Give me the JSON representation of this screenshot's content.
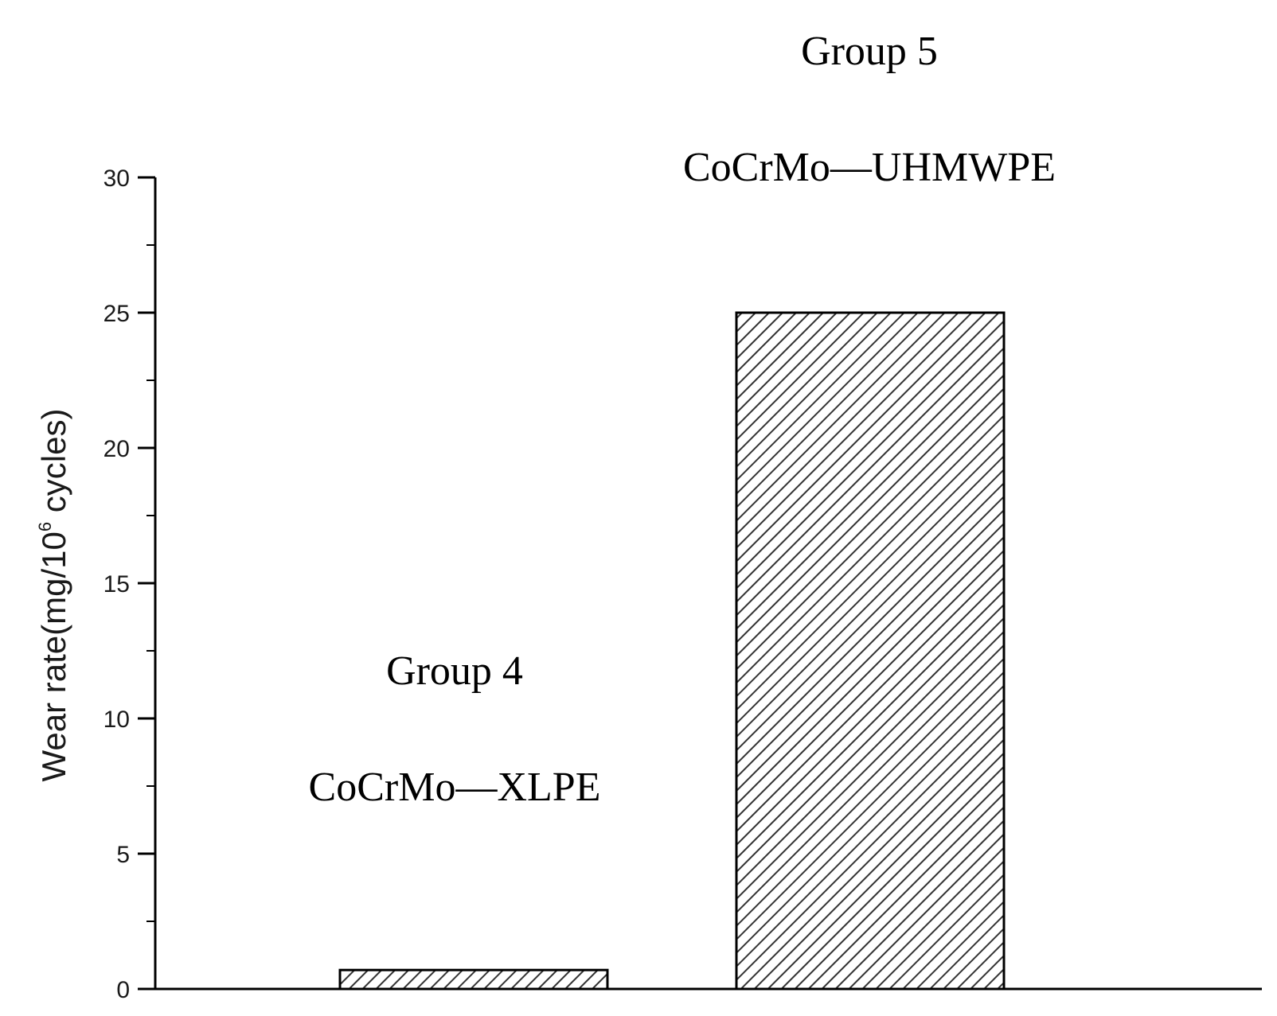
{
  "chart_data": {
    "type": "bar",
    "categories": [
      "Group 4",
      "Group 5"
    ],
    "values": [
      0.7,
      25.0
    ],
    "bar_annotations": [
      {
        "group": "Group 4",
        "material": "CoCrMo—XLPE"
      },
      {
        "group": "Group 5",
        "material": "CoCrMo—UHMWPE"
      }
    ],
    "title": "",
    "xlabel": "",
    "ylabel": {
      "prefix": "Wear rate(mg/10",
      "superscript": "6",
      "suffix": " cycles)"
    },
    "ylim": [
      0,
      30
    ],
    "yticks": [
      "0",
      "5",
      "10",
      "15",
      "20",
      "25",
      "30"
    ],
    "bar_fill": "hatched",
    "colors": {
      "axis": "#000000",
      "bar_stroke": "#000000",
      "hatch": "#333333",
      "text": "#1a1a1a"
    },
    "grid": false
  }
}
